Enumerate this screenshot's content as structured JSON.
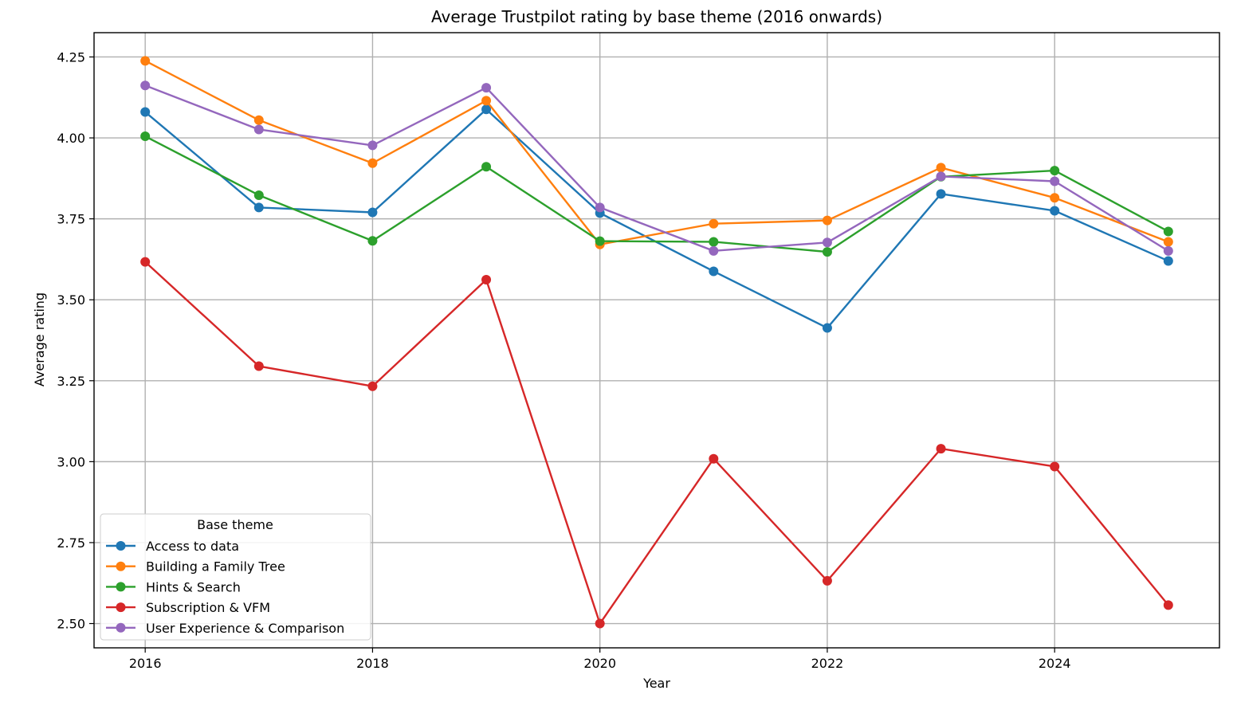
{
  "chart_data": {
    "type": "line",
    "title": "Average Trustpilot rating by base theme (2016 onwards)",
    "xlabel": "Year",
    "ylabel": "Average rating",
    "x": [
      2016,
      2017,
      2018,
      2019,
      2020,
      2021,
      2022,
      2023,
      2024,
      2025
    ],
    "xlim": [
      2015.55,
      2025.45
    ],
    "ylim": [
      2.425,
      4.325
    ],
    "x_ticks": [
      2016,
      2018,
      2020,
      2022,
      2024
    ],
    "x_tick_labels": [
      "2016",
      "2018",
      "2020",
      "2022",
      "2024"
    ],
    "y_ticks": [
      2.5,
      2.75,
      3.0,
      3.25,
      3.5,
      3.75,
      4.0,
      4.25
    ],
    "y_tick_labels": [
      "2.50",
      "2.75",
      "3.00",
      "3.25",
      "3.50",
      "3.75",
      "4.00",
      "4.25"
    ],
    "grid": true,
    "legend": {
      "title": "Base theme",
      "placement": "lower-left"
    },
    "series": [
      {
        "name": "Access to data",
        "color": "#1f77b4",
        "values": [
          4.08,
          3.785,
          3.77,
          4.088,
          3.768,
          3.588,
          3.413,
          3.827,
          3.775,
          3.62
        ]
      },
      {
        "name": "Building a Family Tree",
        "color": "#ff7f0e",
        "values": [
          4.238,
          4.055,
          3.922,
          4.115,
          3.671,
          3.735,
          3.745,
          3.908,
          3.815,
          3.679
        ]
      },
      {
        "name": "Hints & Search",
        "color": "#2ca02c",
        "values": [
          4.005,
          3.823,
          3.682,
          3.911,
          3.681,
          3.679,
          3.648,
          3.88,
          3.899,
          3.711
        ]
      },
      {
        "name": "Subscription & VFM",
        "color": "#d62728",
        "values": [
          3.617,
          3.295,
          3.233,
          3.562,
          2.5,
          3.009,
          2.632,
          3.04,
          2.985,
          2.557
        ]
      },
      {
        "name": "User Experience & Comparison",
        "color": "#9467bd",
        "values": [
          4.162,
          4.026,
          3.977,
          4.155,
          3.785,
          3.651,
          3.677,
          3.881,
          3.866,
          3.651
        ]
      }
    ]
  }
}
